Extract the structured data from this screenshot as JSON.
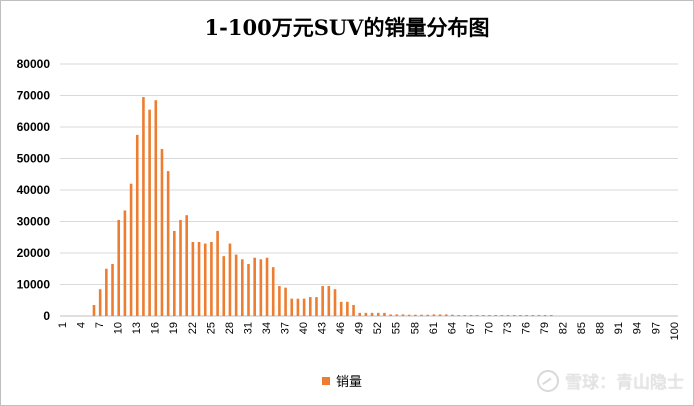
{
  "chart_data": {
    "type": "bar",
    "title": "1-100万元SUV的销量分布图",
    "xlabel": "",
    "ylabel": "",
    "ylim": [
      0,
      80000
    ],
    "yticks": [
      0,
      10000,
      20000,
      30000,
      40000,
      50000,
      60000,
      70000,
      80000
    ],
    "xtick_labels": [
      "1",
      "4",
      "7",
      "10",
      "13",
      "16",
      "19",
      "22",
      "25",
      "28",
      "31",
      "34",
      "37",
      "40",
      "43",
      "46",
      "49",
      "52",
      "55",
      "58",
      "61",
      "64",
      "67",
      "70",
      "73",
      "76",
      "79",
      "82",
      "85",
      "88",
      "91",
      "94",
      "97",
      "100"
    ],
    "grid": true,
    "legend_position": "bottom",
    "colors": {
      "bar": "#ED7D31"
    },
    "categories": [
      1,
      2,
      3,
      4,
      5,
      6,
      7,
      8,
      9,
      10,
      11,
      12,
      13,
      14,
      15,
      16,
      17,
      18,
      19,
      20,
      21,
      22,
      23,
      24,
      25,
      26,
      27,
      28,
      29,
      30,
      31,
      32,
      33,
      34,
      35,
      36,
      37,
      38,
      39,
      40,
      41,
      42,
      43,
      44,
      45,
      46,
      47,
      48,
      49,
      50,
      51,
      52,
      53,
      54,
      55,
      56,
      57,
      58,
      59,
      60,
      61,
      62,
      63,
      64,
      65,
      66,
      67,
      68,
      69,
      70,
      71,
      72,
      73,
      74,
      75,
      76,
      77,
      78,
      79,
      80,
      81,
      82,
      83,
      84,
      85,
      86,
      87,
      88,
      89,
      90,
      91,
      92,
      93,
      94,
      95,
      96,
      97,
      98,
      99,
      100
    ],
    "series": [
      {
        "name": "销量",
        "values": [
          0,
          0,
          0,
          0,
          0,
          3500,
          8500,
          15000,
          16500,
          30500,
          33500,
          42000,
          57500,
          69500,
          65500,
          68500,
          53000,
          46000,
          27000,
          30500,
          32000,
          23500,
          23500,
          23000,
          23500,
          27000,
          19000,
          23000,
          19500,
          18000,
          16500,
          18500,
          18000,
          18500,
          15500,
          9500,
          9000,
          5500,
          5500,
          5500,
          6000,
          6000,
          9500,
          9500,
          8500,
          4500,
          4500,
          3500,
          1000,
          1000,
          1000,
          1000,
          1000,
          500,
          500,
          500,
          400,
          400,
          400,
          400,
          500,
          500,
          500,
          400,
          300,
          300,
          300,
          300,
          300,
          300,
          300,
          300,
          300,
          300,
          300,
          300,
          300,
          300,
          300,
          300,
          0,
          0,
          0,
          0,
          0,
          0,
          0,
          0,
          0,
          0,
          0,
          0,
          0,
          0,
          0,
          0,
          0,
          0,
          0,
          0
        ]
      }
    ]
  },
  "legend": {
    "label": "销量"
  },
  "watermark": {
    "text": "雪球：青山隐士"
  }
}
